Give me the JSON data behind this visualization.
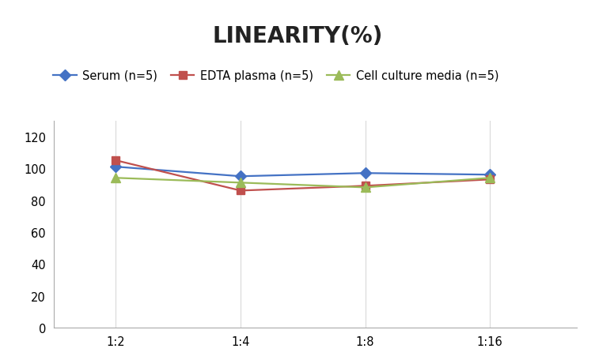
{
  "title": "LINEARITY(%)",
  "title_fontsize": 20,
  "title_fontweight": "bold",
  "x_labels": [
    "1:2",
    "1:4",
    "1:8",
    "1:16"
  ],
  "x_positions": [
    0,
    1,
    2,
    3
  ],
  "series": [
    {
      "label": "Serum (n=5)",
      "values": [
        101,
        95,
        97,
        96
      ],
      "color": "#4472C4",
      "marker": "D",
      "markersize": 7,
      "linewidth": 1.6
    },
    {
      "label": "EDTA plasma (n=5)",
      "values": [
        105,
        86,
        89,
        93
      ],
      "color": "#C0504D",
      "marker": "s",
      "markersize": 7,
      "linewidth": 1.6
    },
    {
      "label": "Cell culture media (n=5)",
      "values": [
        94,
        91,
        88,
        94
      ],
      "color": "#9BBB59",
      "marker": "^",
      "markersize": 8,
      "linewidth": 1.6
    }
  ],
  "ylim": [
    0,
    130
  ],
  "yticks": [
    0,
    20,
    40,
    60,
    80,
    100,
    120
  ],
  "grid_color": "#D9D9D9",
  "grid_linewidth": 0.8,
  "background_color": "#FFFFFF",
  "legend_fontsize": 10.5,
  "tick_fontsize": 10.5,
  "spine_color": "#AAAAAA",
  "xlim": [
    -0.5,
    3.7
  ]
}
